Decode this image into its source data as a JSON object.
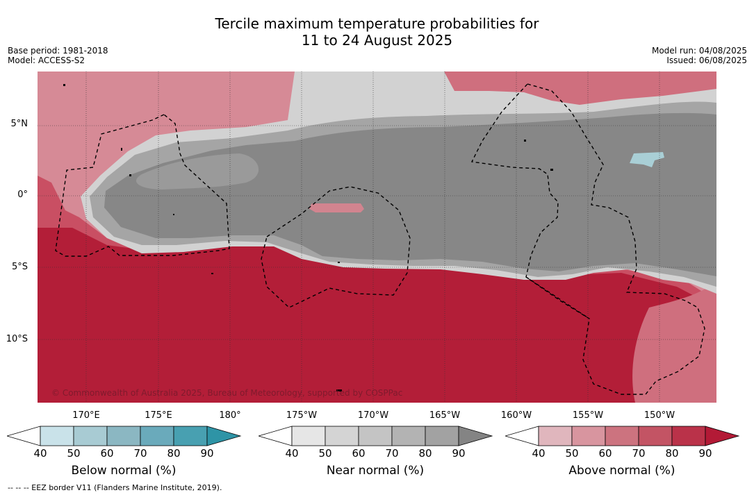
{
  "title": {
    "line1": "Tercile maximum temperature probabilities for",
    "line2": "11 to 24 August 2025"
  },
  "meta": {
    "base_period": "Base period: 1981-2018",
    "model": "Model: ACCESS-S2",
    "model_run": "Model run: 04/08/2025",
    "issued": "Issued: 06/08/2025"
  },
  "map": {
    "copyright": "© Commonwealth of Australia 2025, Bureau of Meteorology, supported by COSPPac",
    "lat_labels": [
      "5°N",
      "0°",
      "5°S",
      "10°S"
    ],
    "lon_labels": [
      "170°E",
      "175°E",
      "180°",
      "175°W",
      "170°W",
      "165°W",
      "160°W",
      "155°W",
      "150°W"
    ],
    "colors": {
      "above": "#b31e38",
      "near": "#878787",
      "below": "#4aa0b0"
    }
  },
  "colorbars": [
    {
      "title": "Below normal (%)",
      "ticks": [
        "40",
        "50",
        "60",
        "70",
        "80",
        "90"
      ],
      "colors": [
        "#c9e2e9",
        "#a8cbd3",
        "#8bb7c2",
        "#6aaabb",
        "#48a0b1",
        "#2e94a6"
      ]
    },
    {
      "title": "Near normal (%)",
      "ticks": [
        "40",
        "50",
        "60",
        "70",
        "80",
        "90"
      ],
      "colors": [
        "#e6e6e6",
        "#d4d4d4",
        "#c4c4c4",
        "#b3b3b3",
        "#a2a2a2",
        "#848484"
      ]
    },
    {
      "title": "Above normal (%)",
      "ticks": [
        "40",
        "50",
        "60",
        "70",
        "80",
        "90"
      ],
      "colors": [
        "#e0b6bd",
        "#d8959f",
        "#cc737f",
        "#c35464",
        "#ba3249",
        "#b31a36"
      ]
    }
  ],
  "footnote": "--  --  -- EEZ border V11 (Flanders Marine Institute, 2019)."
}
